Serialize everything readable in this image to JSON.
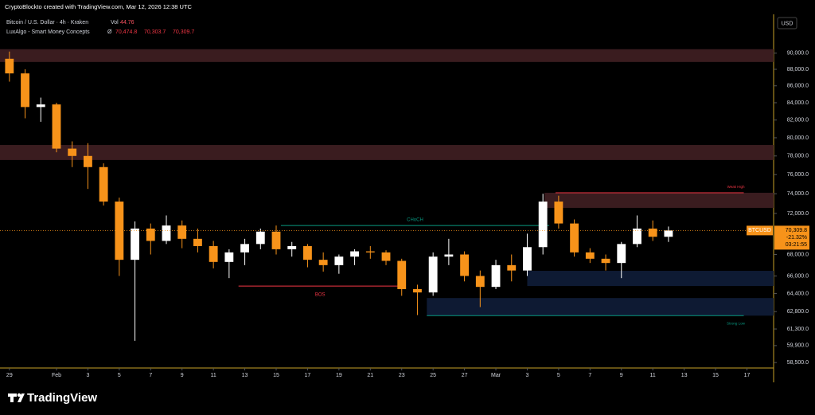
{
  "header": {
    "credit": "CryptoBlockto created with TradingView.com, Mar 12, 2026 12:38 UTC",
    "symbol_line": "Bitcoin / U.S. Dollar · 4h · Kraken",
    "vol_label": "Vol",
    "vol_value": "44.76",
    "indicator": "LuxAlgo - Smart Money Concepts",
    "indicator_symbol": "Ø",
    "indicator_values": [
      "70,474.8",
      "70,303.7",
      "70,309.7"
    ]
  },
  "currency": "USD",
  "brand": "TradingView",
  "chart_data": {
    "type": "candlestick",
    "log_scale": true,
    "grid": false,
    "up_color": "#ffffff",
    "down_color": "#f7931a",
    "xlim": [
      -0.6,
      48.7
    ],
    "xticks": [
      {
        "value": 0,
        "label": "29"
      },
      {
        "value": 3,
        "label": "Feb"
      },
      {
        "value": 5,
        "label": "3"
      },
      {
        "value": 7,
        "label": "5"
      },
      {
        "value": 9,
        "label": "7"
      },
      {
        "value": 11,
        "label": "9"
      },
      {
        "value": 13,
        "label": "11"
      },
      {
        "value": 15,
        "label": "13"
      },
      {
        "value": 17,
        "label": "15"
      },
      {
        "value": 19,
        "label": "17"
      },
      {
        "value": 21,
        "label": "19"
      },
      {
        "value": 23,
        "label": "21"
      },
      {
        "value": 25,
        "label": "23"
      },
      {
        "value": 27,
        "label": "25"
      },
      {
        "value": 29,
        "label": "27"
      },
      {
        "value": 31,
        "label": "Mar"
      },
      {
        "value": 33,
        "label": "3"
      },
      {
        "value": 35,
        "label": "5"
      },
      {
        "value": 37,
        "label": "7"
      },
      {
        "value": 39,
        "label": "9"
      },
      {
        "value": 41,
        "label": "11"
      },
      {
        "value": 43,
        "label": "13"
      },
      {
        "value": 45,
        "label": "15"
      },
      {
        "value": 47,
        "label": "17"
      }
    ],
    "ylim": [
      58060,
      95000
    ],
    "yticks": [
      {
        "value": 90000,
        "label": "90,000.0"
      },
      {
        "value": 88000,
        "label": "88,000.0"
      },
      {
        "value": 86000,
        "label": "86,000.0"
      },
      {
        "value": 84000,
        "label": "84,000.0"
      },
      {
        "value": 82000,
        "label": "82,000.0"
      },
      {
        "value": 80000,
        "label": "80,000.0"
      },
      {
        "value": 78000,
        "label": "78,000.0"
      },
      {
        "value": 76000,
        "label": "76,000.0"
      },
      {
        "value": 74000,
        "label": "74,000.0"
      },
      {
        "value": 72000,
        "label": "72,000.0"
      },
      {
        "value": 68000,
        "label": "68,000.0"
      },
      {
        "value": 66000,
        "label": "66,000.0"
      },
      {
        "value": 64400,
        "label": "64,400.0"
      },
      {
        "value": 62800,
        "label": "62,800.0"
      },
      {
        "value": 61300,
        "label": "61,300.0"
      },
      {
        "value": 59900,
        "label": "59,900.0"
      },
      {
        "value": 58500,
        "label": "58,500.0"
      }
    ],
    "x": [
      0,
      1,
      2,
      3,
      4,
      5,
      6,
      7,
      8,
      9,
      10,
      11,
      12,
      13,
      14,
      15,
      16,
      17,
      18,
      19,
      20,
      21,
      22,
      23,
      24,
      25,
      26,
      27,
      28,
      29,
      30,
      31,
      32,
      33,
      34,
      35,
      36,
      37,
      38,
      39,
      40,
      41,
      42
    ],
    "open": [
      89300,
      87500,
      83500,
      83800,
      78800,
      78000,
      76800,
      73200,
      67500,
      70500,
      69300,
      70800,
      69500,
      68800,
      67300,
      68200,
      69000,
      70200,
      68500,
      68800,
      67500,
      67000,
      67800,
      68300,
      68200,
      67400,
      64800,
      64500,
      67800,
      68000,
      66000,
      65000,
      67000,
      66500,
      68700,
      73200,
      71000,
      68200,
      67600,
      67200,
      69000,
      70500,
      69700
    ],
    "high": [
      90200,
      88000,
      84600,
      84000,
      79600,
      79400,
      77200,
      73600,
      71200,
      71000,
      71800,
      71300,
      70500,
      69300,
      68500,
      69500,
      70500,
      70800,
      69200,
      69000,
      68200,
      68000,
      68500,
      68800,
      68400,
      67600,
      65200,
      68200,
      69500,
      68300,
      66500,
      67500,
      68000,
      70000,
      74000,
      73800,
      71400,
      68600,
      68000,
      69200,
      71800,
      71300,
      70700
    ],
    "low": [
      86500,
      82200,
      81800,
      78400,
      76800,
      74500,
      72800,
      66000,
      60300,
      68000,
      69000,
      68600,
      68200,
      66700,
      65800,
      67000,
      68500,
      68000,
      67800,
      66800,
      66400,
      66200,
      67000,
      67600,
      67000,
      64200,
      62500,
      64200,
      67000,
      65500,
      63200,
      64800,
      65500,
      66000,
      68000,
      70500,
      67800,
      67200,
      66500,
      65800,
      68700,
      69300,
      69200
    ],
    "close": [
      87500,
      83500,
      83800,
      78800,
      78000,
      76800,
      73200,
      67500,
      70500,
      69300,
      70800,
      69500,
      68800,
      67300,
      68200,
      69000,
      70200,
      68500,
      68800,
      67500,
      67000,
      67800,
      68300,
      68200,
      67400,
      64800,
      64500,
      67800,
      68000,
      66000,
      65000,
      67000,
      66500,
      68700,
      73200,
      71000,
      68200,
      67600,
      67200,
      69000,
      70500,
      69700,
      70309.8
    ],
    "zones": [
      {
        "top": 90500,
        "bottom": 88900,
        "start": -0.6,
        "color": "#3a1c1f"
      },
      {
        "top": 79200,
        "bottom": 77560,
        "start": -0.6,
        "color": "#3a1c1f"
      },
      {
        "top": 74100,
        "bottom": 72560,
        "start": 34.1,
        "color": "#3a1c1f"
      },
      {
        "top": 66470,
        "bottom": 65080,
        "start": 33.0,
        "color": "#0e1a33"
      },
      {
        "top": 64000,
        "bottom": 62450,
        "start": 26.6,
        "color": "#0e1a33"
      }
    ],
    "levels": [
      {
        "label": "CHoCH",
        "value": 70800,
        "start": 17.3,
        "end": 34.4,
        "color": "#089981"
      },
      {
        "label": "BOS",
        "value": 65080,
        "start": 14.6,
        "end": 25.0,
        "color": "#f23645"
      },
      {
        "label": "Weak High",
        "value": 74100,
        "start": 34.8,
        "end": 46.8,
        "color": "#f23645"
      },
      {
        "label": "Strong Low",
        "value": 62450,
        "start": 26.6,
        "end": 46.8,
        "color": "#089981"
      }
    ],
    "price_tag": {
      "symbol": "BTCUSD",
      "value": 70309.8,
      "label": "70,309.8",
      "change": "-21.32%",
      "countdown": "03:21:55",
      "color": "#f7931a"
    }
  }
}
